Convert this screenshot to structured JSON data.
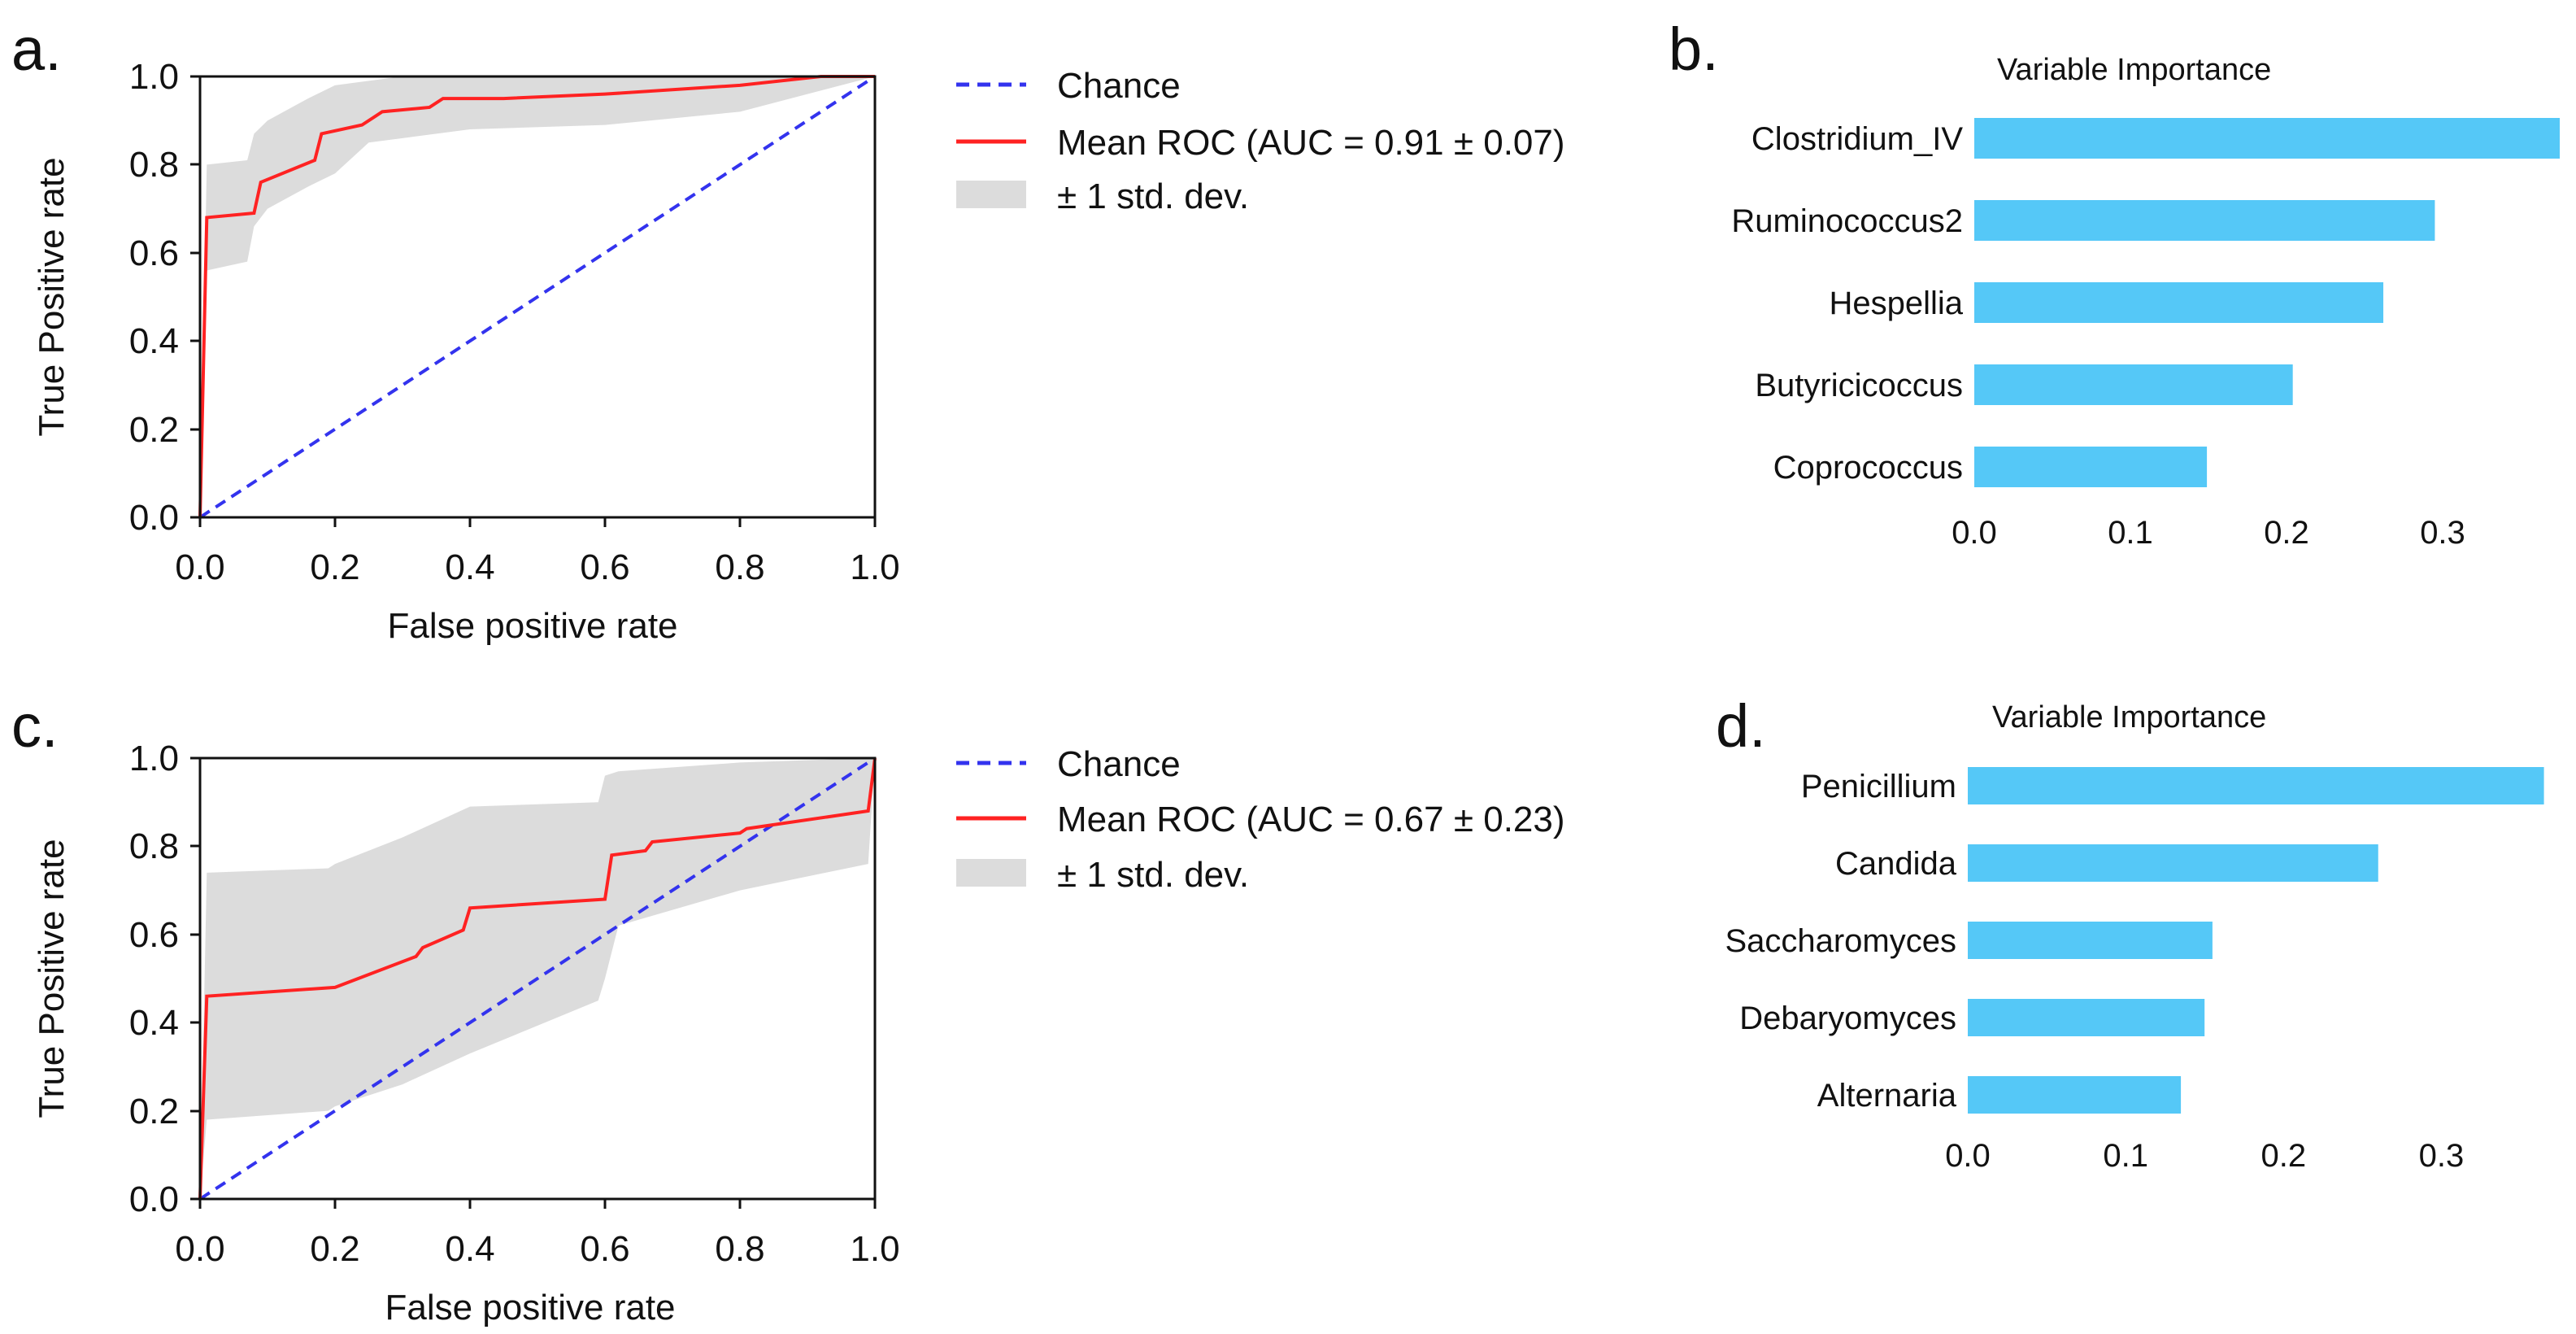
{
  "panels": {
    "a": {
      "letter": "a."
    },
    "b": {
      "letter": "b."
    },
    "c": {
      "letter": "c."
    },
    "d": {
      "letter": "d."
    }
  },
  "colors": {
    "roc_line": "#ff2222",
    "chance_line": "#3333ee",
    "band_fill": "#dcdcdc",
    "bar_fill": "#55c8f7",
    "axis": "#111111"
  },
  "chart_data": [
    {
      "id": "a",
      "type": "line",
      "title": "",
      "xlabel": "False positive rate",
      "ylabel": "True Positive rate",
      "xlim": [
        0,
        1
      ],
      "ylim": [
        0,
        1
      ],
      "xticks": [
        "0.0",
        "0.2",
        "0.4",
        "0.6",
        "0.8",
        "1.0"
      ],
      "yticks": [
        "0.0",
        "0.2",
        "0.4",
        "0.6",
        "0.8",
        "1.0"
      ],
      "grid": false,
      "legend_position": "outside-right-top",
      "series": [
        {
          "name": "Chance",
          "style": "dashed",
          "x": [
            0,
            1
          ],
          "y": [
            0,
            1
          ]
        },
        {
          "name": "Mean ROC (AUC = 0.91 ± 0.07)",
          "style": "solid",
          "x": [
            0,
            0.01,
            0.08,
            0.09,
            0.17,
            0.18,
            0.24,
            0.26,
            0.27,
            0.34,
            0.36,
            0.45,
            0.6,
            0.8,
            0.92,
            1.0
          ],
          "y": [
            0,
            0.68,
            0.69,
            0.76,
            0.81,
            0.87,
            0.89,
            0.91,
            0.92,
            0.93,
            0.95,
            0.95,
            0.96,
            0.98,
            1.0,
            1.0
          ]
        }
      ],
      "band": {
        "name": "± 1 std. dev.",
        "x": [
          0,
          0.01,
          0.07,
          0.08,
          0.1,
          0.16,
          0.2,
          0.25,
          0.3,
          0.4,
          0.6,
          0.8,
          0.9,
          1.0
        ],
        "upper": [
          0,
          0.8,
          0.81,
          0.87,
          0.9,
          0.95,
          0.98,
          0.99,
          1.0,
          1.0,
          1.0,
          1.0,
          1.0,
          1.0
        ],
        "lower": [
          0,
          0.56,
          0.58,
          0.66,
          0.7,
          0.75,
          0.78,
          0.85,
          0.86,
          0.88,
          0.89,
          0.92,
          0.96,
          1.0
        ]
      }
    },
    {
      "id": "b",
      "type": "bar",
      "orientation": "horizontal",
      "title": "Variable Importance",
      "xlabel": "",
      "ylabel": "",
      "categories": [
        "Clostridium_IV",
        "Ruminococcus2",
        "Hespellia",
        "Butyricicoccus",
        "Coprococcus"
      ],
      "values": [
        0.375,
        0.295,
        0.262,
        0.204,
        0.149
      ],
      "xlim": [
        0,
        0.375
      ],
      "xticks": [
        "0.0",
        "0.1",
        "0.2",
        "0.3"
      ],
      "grid": false
    },
    {
      "id": "c",
      "type": "line",
      "title": "",
      "xlabel": "False positive rate",
      "ylabel": "True Positive rate",
      "xlim": [
        0,
        1
      ],
      "ylim": [
        0,
        1
      ],
      "xticks": [
        "0.0",
        "0.2",
        "0.4",
        "0.6",
        "0.8",
        "1.0"
      ],
      "yticks": [
        "0.0",
        "0.2",
        "0.4",
        "0.6",
        "0.8",
        "1.0"
      ],
      "grid": false,
      "legend_position": "outside-right-top",
      "series": [
        {
          "name": "Chance",
          "style": "dashed",
          "x": [
            0,
            1
          ],
          "y": [
            0,
            1
          ]
        },
        {
          "name": "Mean ROC (AUC = 0.67 ± 0.23)",
          "style": "solid",
          "x": [
            0,
            0.01,
            0.2,
            0.32,
            0.33,
            0.39,
            0.4,
            0.6,
            0.61,
            0.66,
            0.67,
            0.8,
            0.81,
            0.99,
            1.0
          ],
          "y": [
            0,
            0.46,
            0.48,
            0.55,
            0.57,
            0.61,
            0.66,
            0.68,
            0.78,
            0.79,
            0.81,
            0.83,
            0.84,
            0.88,
            1.0
          ]
        }
      ],
      "band": {
        "name": "± 1 std. dev.",
        "x": [
          0,
          0.01,
          0.19,
          0.2,
          0.3,
          0.4,
          0.59,
          0.6,
          0.62,
          0.8,
          0.99,
          1.0
        ],
        "upper": [
          0,
          0.74,
          0.75,
          0.76,
          0.82,
          0.89,
          0.9,
          0.96,
          0.97,
          0.99,
          1.0,
          1.0
        ],
        "lower": [
          0,
          0.18,
          0.2,
          0.21,
          0.26,
          0.33,
          0.45,
          0.5,
          0.62,
          0.7,
          0.76,
          1.0
        ]
      }
    },
    {
      "id": "d",
      "type": "bar",
      "orientation": "horizontal",
      "title": "Variable Importance",
      "xlabel": "",
      "ylabel": "",
      "categories": [
        "Penicillium",
        "Candida",
        "Saccharomyces",
        "Debaryomyces",
        "Alternaria"
      ],
      "values": [
        0.365,
        0.26,
        0.155,
        0.15,
        0.135
      ],
      "xlim": [
        0,
        0.375
      ],
      "xticks": [
        "0.0",
        "0.1",
        "0.2",
        "0.3"
      ],
      "grid": false
    }
  ]
}
